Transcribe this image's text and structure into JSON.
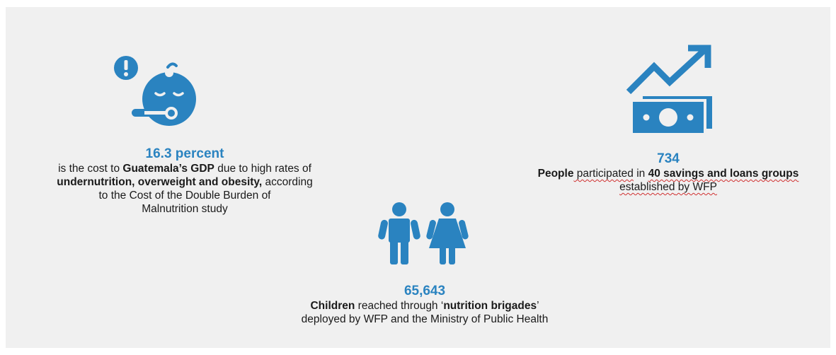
{
  "colors": {
    "accent": "#2a83c0",
    "background": "#f0f0f0"
  },
  "left_stat": {
    "value": "16.3 percent",
    "line1_a": "is the cost to ",
    "line1_b": "Guatemala’s GDP",
    "line1_c": " due to high rates of",
    "line2_a": "undernutrition, overweight and obesity,",
    "line2_b": " according",
    "line3": "to the Cost of the Double Burden of",
    "line4": "Malnutrition study"
  },
  "right_stat": {
    "value": "734",
    "line1_a": "People",
    "line1_b": " participated",
    "line1_c": " in ",
    "line1_d": "40 savings and loans groups",
    "line2_a": "established",
    "line2_b": " by WFP"
  },
  "center_stat": {
    "value": "65,643",
    "line1_a": "Children",
    "line1_b": " reached through ‘",
    "line1_c": "nutrition brigades",
    "line1_d": "’",
    "line2": "deployed by WFP and the Ministry of Public Health"
  },
  "icons": [
    "baby-alert-icon",
    "money-growth-icon",
    "children-icon"
  ]
}
